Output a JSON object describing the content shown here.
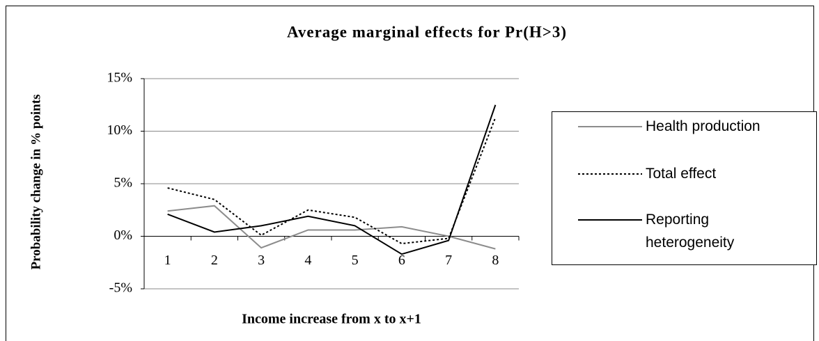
{
  "chart_data": {
    "type": "line",
    "title": "Average marginal effects for Pr(H>3)",
    "x_label": "Income increase from x to x+1",
    "y_label": "Probability change in % points",
    "categories": [
      "1",
      "2",
      "3",
      "4",
      "5",
      "6",
      "7",
      "8"
    ],
    "series": [
      {
        "name": "Health production",
        "color": "#8c8c8c",
        "line_style": "solid",
        "values": [
          2.4,
          2.9,
          -1.1,
          0.6,
          0.6,
          0.9,
          0.0,
          -1.2
        ]
      },
      {
        "name": "Total effect",
        "color": "#000000",
        "line_style": "dotted",
        "values": [
          4.6,
          3.5,
          0.1,
          2.5,
          1.8,
          -0.7,
          -0.2,
          11.3
        ]
      },
      {
        "name": "Reporting heterogeneity",
        "color": "#000000",
        "line_style": "solid",
        "values": [
          2.1,
          0.4,
          1.0,
          1.9,
          1.0,
          -1.7,
          -0.4,
          12.5
        ]
      }
    ],
    "ylim": [
      -5,
      15
    ],
    "yticks": [
      {
        "value": -5,
        "label": "-5%"
      },
      {
        "value": 0,
        "label": "0%"
      },
      {
        "value": 5,
        "label": "5%"
      },
      {
        "value": 10,
        "label": "10%"
      },
      {
        "value": 15,
        "label": "15%"
      }
    ],
    "grid": true,
    "legend": "right"
  }
}
